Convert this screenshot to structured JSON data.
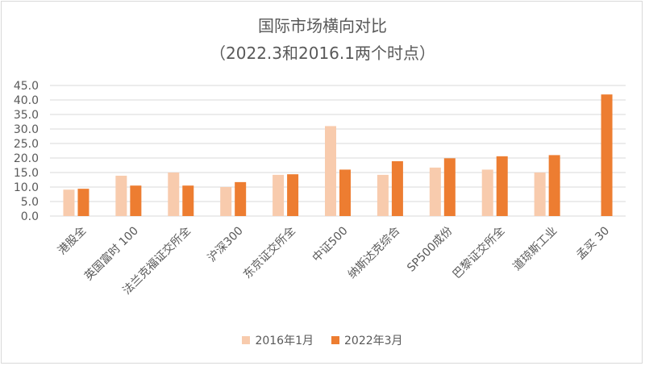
{
  "chart_data": {
    "type": "bar",
    "title": "国际市场横向对比",
    "subtitle": "（2022.3和2016.1两个时点）",
    "categories": [
      "港股全",
      "英国富时 100",
      "法兰克福证交所全",
      "沪深300",
      "东京证交所全",
      "中证500",
      "纳斯达克综合",
      "SP500成份",
      "巴黎证交所全",
      "道琼斯工业",
      "孟买 30"
    ],
    "series": [
      {
        "name": "2016年1月",
        "color": "#F8CBAD",
        "values": [
          9.1,
          13.9,
          15.0,
          10.0,
          14.2,
          31.0,
          14.2,
          16.7,
          16.0,
          15.0,
          null
        ]
      },
      {
        "name": "2022年3月",
        "color": "#ED7D31",
        "values": [
          9.4,
          10.5,
          10.5,
          11.7,
          14.4,
          16.0,
          18.9,
          19.9,
          20.6,
          21.0,
          41.9
        ]
      }
    ],
    "yticks": [
      "0.0",
      "5.0",
      "10.0",
      "15.0",
      "20.0",
      "25.0",
      "30.0",
      "35.0",
      "40.0",
      "45.0"
    ],
    "ylim": [
      0,
      45
    ],
    "grid": true,
    "legend_position": "bottom",
    "xlabel": "",
    "ylabel": ""
  }
}
